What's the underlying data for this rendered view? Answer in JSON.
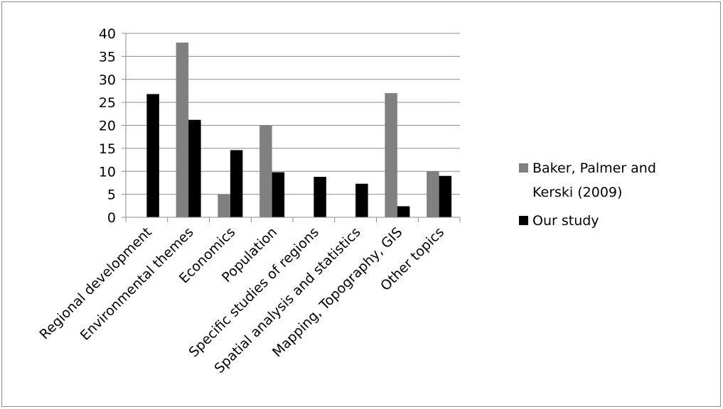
{
  "chart_data": {
    "type": "bar",
    "categories": [
      "Regional development",
      "Environmental themes",
      "Economics",
      "Population",
      "Specific studies of regions",
      "Spatial analysis and statistics",
      "Mapping, Topography, GIS",
      "Other topics"
    ],
    "series": [
      {
        "name": "Baker, Palmer and Kerski (2009)",
        "color": "#808080",
        "values": [
          0,
          38,
          5,
          20,
          0,
          0,
          27,
          10
        ]
      },
      {
        "name": "Our study",
        "color": "#000000",
        "values": [
          26.8,
          21.2,
          14.6,
          9.8,
          8.8,
          7.3,
          2.4,
          9
        ]
      }
    ],
    "ylim": [
      0,
      40
    ],
    "yticks": [
      "0",
      "5",
      "10",
      "15",
      "20",
      "25",
      "30",
      "35",
      "40"
    ],
    "grid": true,
    "legend_position": "right",
    "legend_lines": [
      [
        "Baker, Palmer and",
        "Kerski (2009)"
      ],
      [
        "Our study"
      ]
    ]
  }
}
